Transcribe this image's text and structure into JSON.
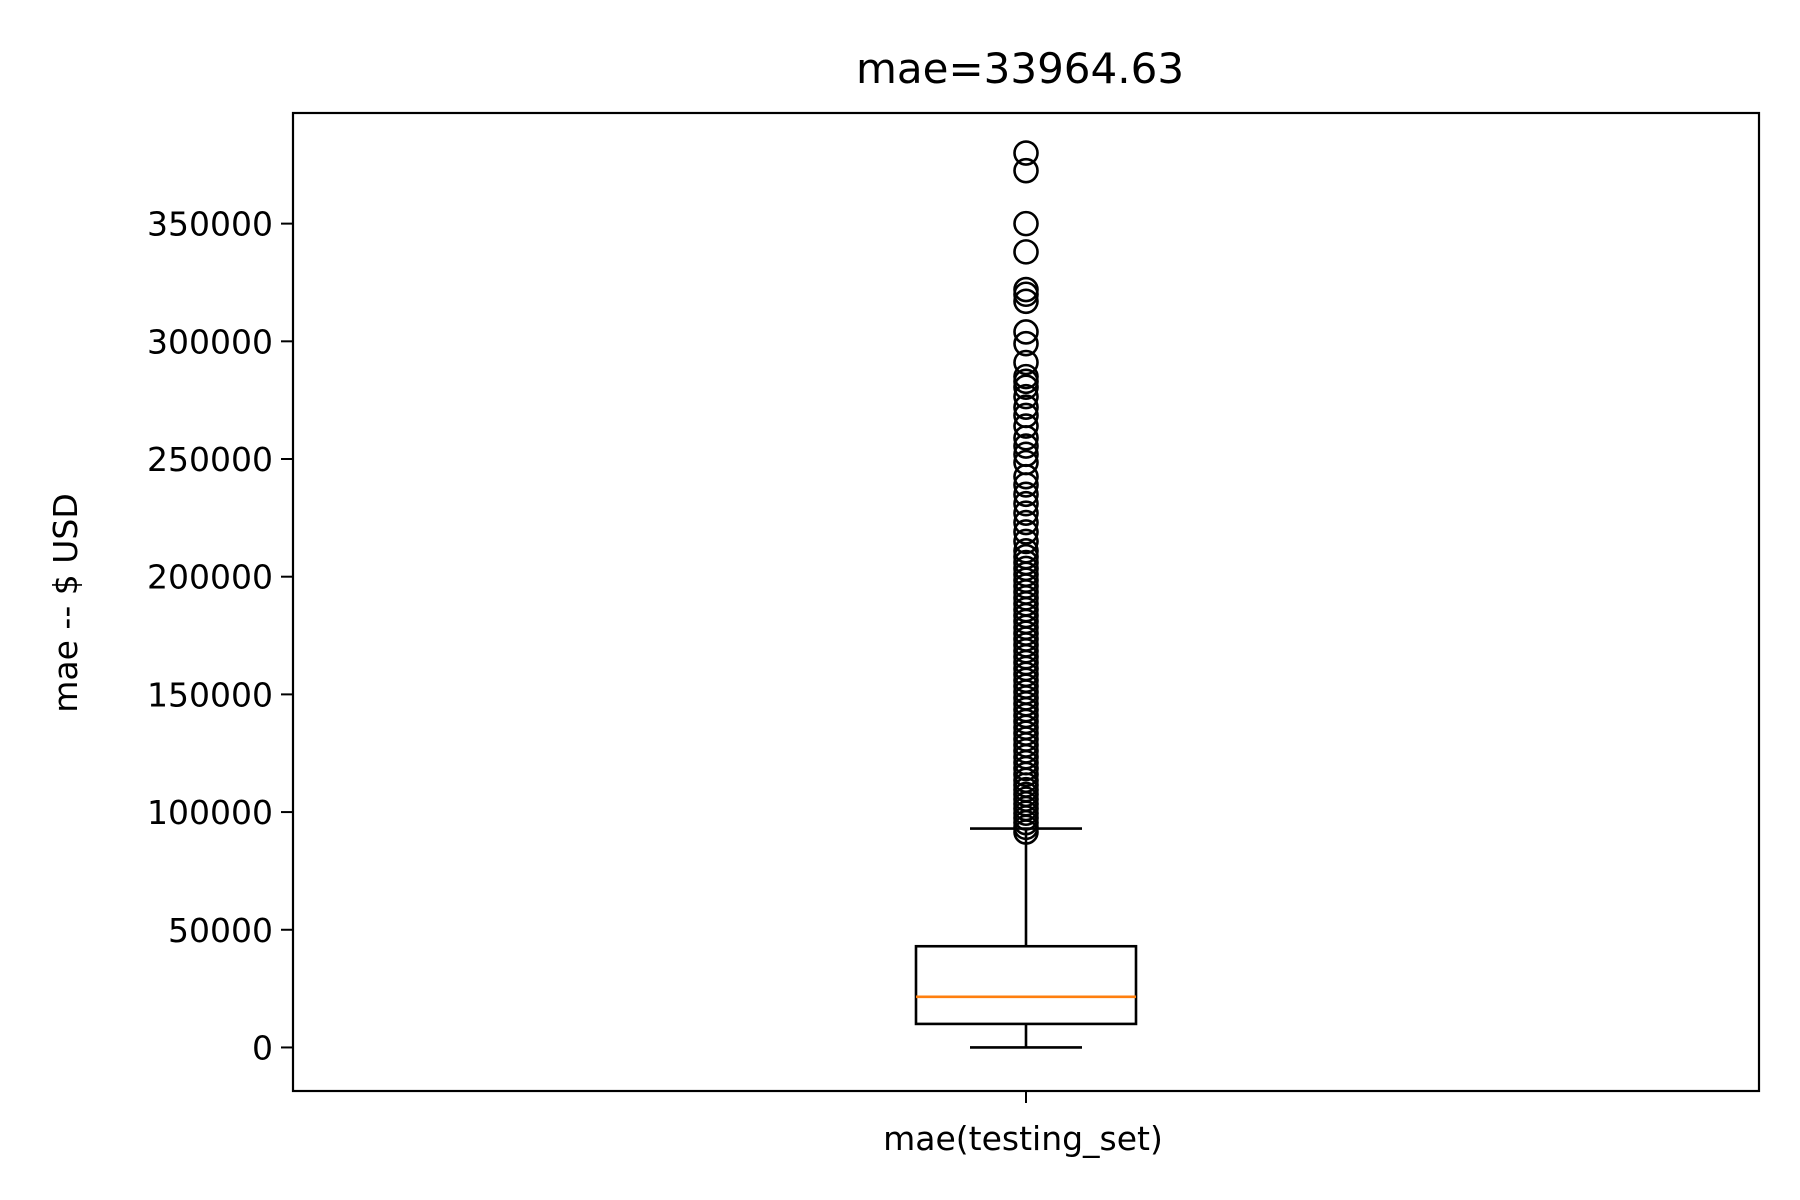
{
  "chart_data": {
    "type": "box",
    "title": "mae=33964.63",
    "xlabel": "",
    "ylabel": "mae -- $ USD",
    "categories": [
      "mae(testing_set)"
    ],
    "ylim": [
      -18500,
      397000
    ],
    "yticks": [
      0,
      50000,
      100000,
      150000,
      200000,
      250000,
      300000,
      350000
    ],
    "grid": false,
    "box": {
      "whisker_low": 0,
      "q1": 10000,
      "median": 21500,
      "q3": 43000,
      "whisker_high": 93000
    },
    "outliers": [
      91500,
      93500,
      95500,
      97500,
      99500,
      101500,
      103500,
      105500,
      107500,
      109500,
      111500,
      113500,
      116000,
      118500,
      121000,
      123500,
      126000,
      128500,
      131000,
      133500,
      136000,
      138500,
      141000,
      143500,
      146000,
      148500,
      151000,
      153500,
      156000,
      158500,
      161000,
      163500,
      166000,
      168500,
      171000,
      173500,
      176000,
      178500,
      181000,
      183500,
      186000,
      188500,
      191000,
      193500,
      196000,
      198500,
      201000,
      203500,
      206000,
      208500,
      211000,
      215000,
      219000,
      223000,
      227000,
      231000,
      235000,
      239000,
      242500,
      248500,
      252000,
      255500,
      259000,
      264000,
      268500,
      272000,
      276500,
      280500,
      283000,
      285000,
      291000,
      299000,
      304000,
      317000,
      320000,
      322000,
      338000,
      350000,
      372500,
      380000
    ],
    "colors": {
      "box": "#000000",
      "median": "#ff7f0e",
      "outlier": "#000000"
    }
  }
}
